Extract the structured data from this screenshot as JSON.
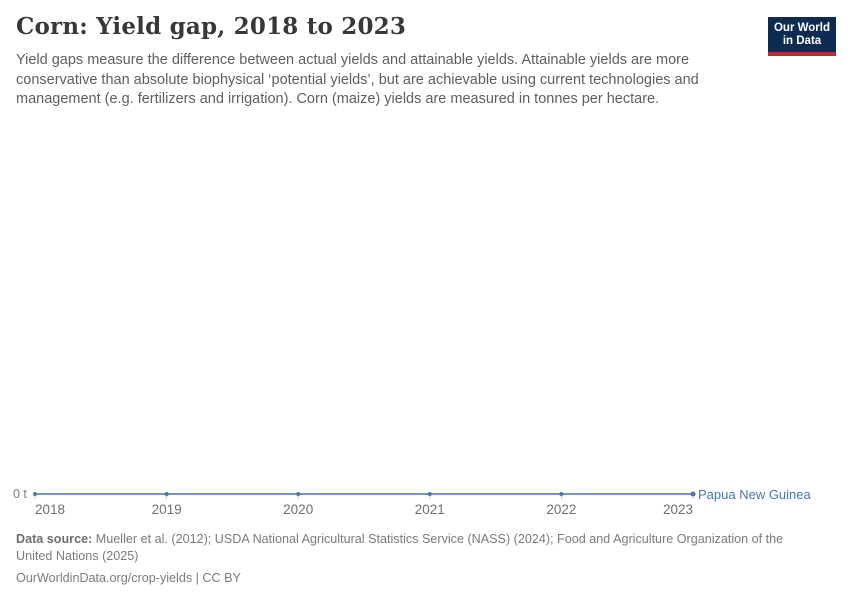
{
  "header": {
    "title": "Corn: Yield gap, 2018 to 2023",
    "subtitle": "Yield gaps measure the difference between actual yields and attainable yields. Attainable yields are more conservative than absolute biophysical ‘potential yields’, but are achievable using current technologies and management (e.g. fertilizers and irrigation). Corn (maize) yields are measured in tonnes per hectare.",
    "logo": {
      "line1": "Our World",
      "line2": "in Data"
    },
    "logo_colors": {
      "background": "#0e2c52",
      "underline": "#b13028"
    }
  },
  "chart_data": {
    "type": "line",
    "title": "Corn: Yield gap, 2018 to 2023",
    "x": [
      2018,
      2019,
      2020,
      2021,
      2022,
      2023
    ],
    "series": [
      {
        "name": "Papua New Guinea",
        "values": [
          0,
          0,
          0,
          0,
          0,
          0
        ],
        "color": "#4676af"
      }
    ],
    "y_axis": {
      "tick_labels": [
        "0 t"
      ],
      "range": [
        0,
        0
      ],
      "unit": "t"
    },
    "x_axis": {
      "range": [
        2018,
        2023
      ]
    },
    "grid": false,
    "legend_position": "end-of-line",
    "tick_color": "#c3cbd8"
  },
  "footer": {
    "source_label": "Data source:",
    "source_text": "Mueller et al. (2012); USDA National Agricultural Statistics Service (NASS) (2024); Food and Agriculture Organization of the United Nations (2025)",
    "citation": "OurWorldinData.org/crop-yields | CC BY"
  }
}
